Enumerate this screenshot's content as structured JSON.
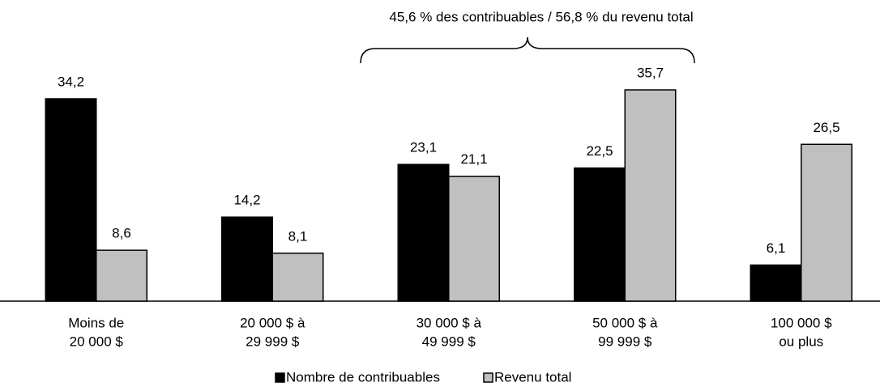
{
  "chart_data": {
    "type": "bar",
    "annotation": "45,6 % des contribuables / 56,8 % du revenu total",
    "categories": [
      [
        "Moins de",
        "20 000 $"
      ],
      [
        "20 000 $ à",
        "29 999 $"
      ],
      [
        "30 000 $ à",
        "49 999 $"
      ],
      [
        "50 000 $ à",
        "99 999 $"
      ],
      [
        "100 000 $",
        "ou plus"
      ]
    ],
    "series": [
      {
        "name": "Nombre de contribuables",
        "color": "#000000",
        "values": [
          34.2,
          14.2,
          23.1,
          22.5,
          6.1
        ],
        "value_labels": [
          "34,2",
          "14,2",
          "23,1",
          "22,5",
          "6,1"
        ]
      },
      {
        "name": "Revenu total",
        "color": "#c0c0c0",
        "values": [
          8.6,
          8.1,
          21.1,
          35.7,
          26.5
        ],
        "value_labels": [
          "8,6",
          "8,1",
          "21,1",
          "35,7",
          "26,5"
        ]
      }
    ]
  }
}
